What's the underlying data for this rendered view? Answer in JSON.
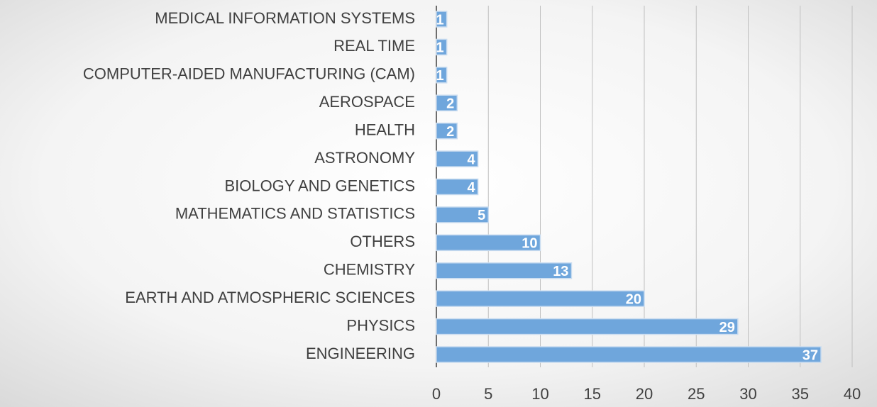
{
  "chart_data": {
    "type": "bar",
    "orientation": "horizontal",
    "categories": [
      "MEDICAL INFORMATION SYSTEMS",
      "REAL TIME",
      "COMPUTER-AIDED MANUFACTURING (CAM)",
      "AEROSPACE",
      "HEALTH",
      "ASTRONOMY",
      "BIOLOGY AND GENETICS",
      "MATHEMATICS  AND STATISTICS",
      "OTHERS",
      "CHEMISTRY",
      "EARTH AND ATMOSPHERIC SCIENCES",
      "PHYSICS",
      "ENGINEERING"
    ],
    "values": [
      1,
      1,
      1,
      2,
      2,
      4,
      4,
      5,
      10,
      13,
      20,
      29,
      37
    ],
    "color": "#6fa6dc",
    "xlim": [
      0,
      40
    ],
    "xticks": [
      0,
      5,
      10,
      15,
      20,
      25,
      30,
      35,
      40
    ],
    "grid": true
  }
}
